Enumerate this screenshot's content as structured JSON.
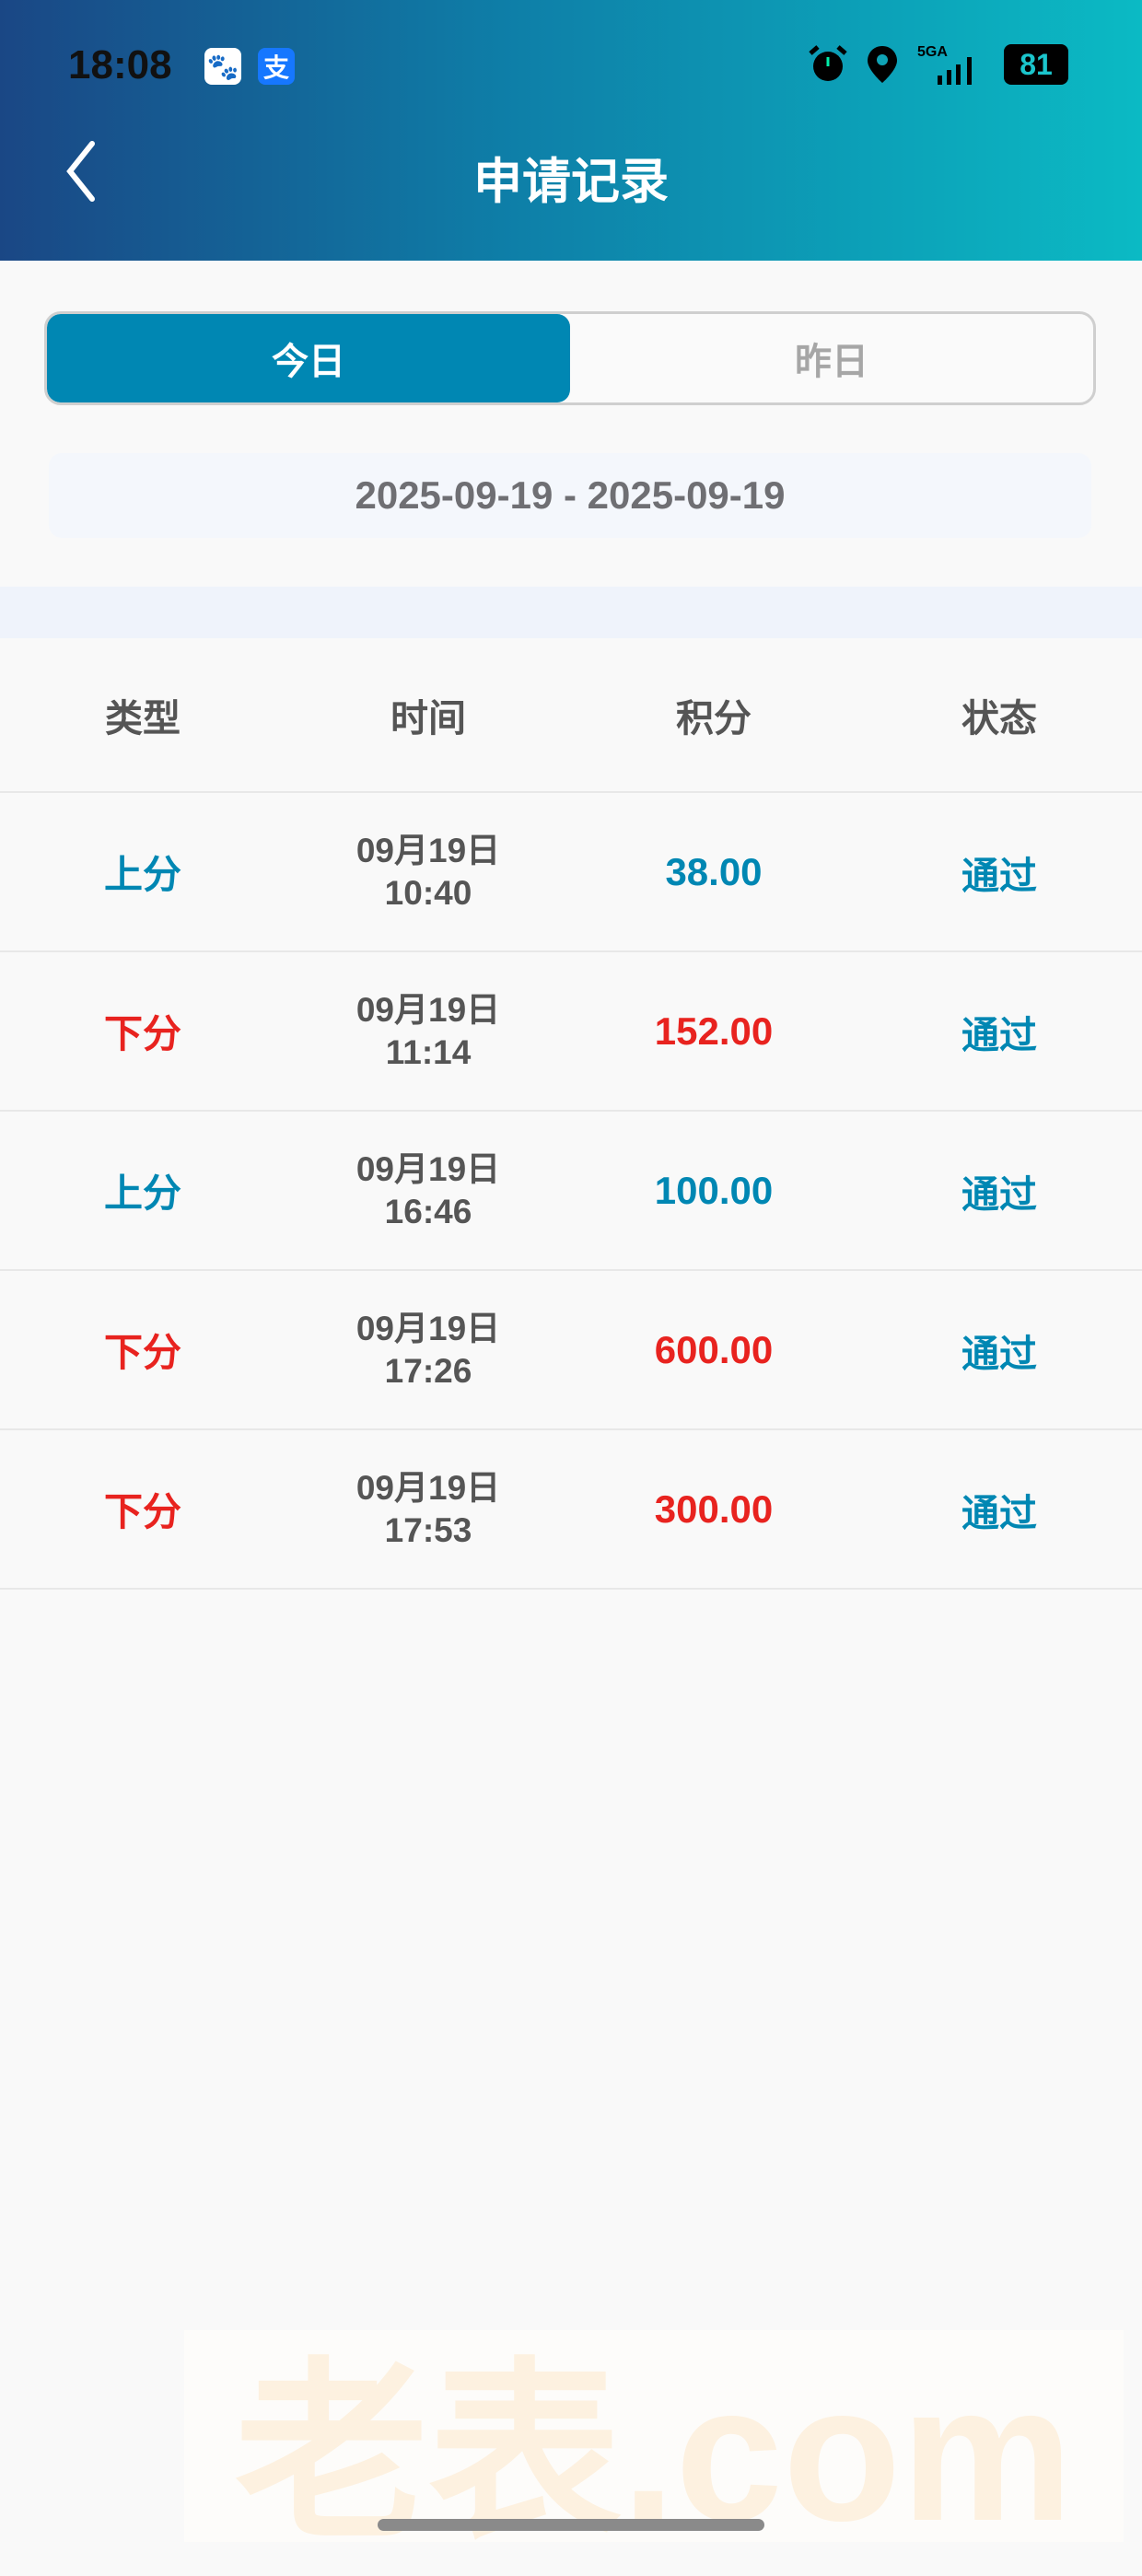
{
  "status_bar": {
    "time": "18:08",
    "battery": "81",
    "network": "5GA"
  },
  "header": {
    "title": "申请记录"
  },
  "tabs": [
    {
      "label": "今日",
      "active": true
    },
    {
      "label": "昨日",
      "active": false
    }
  ],
  "date_range": "2025-09-19 - 2025-09-19",
  "table": {
    "headers": [
      "类型",
      "时间",
      "积分",
      "状态"
    ],
    "rows": [
      {
        "type": "上分",
        "date": "09月19日",
        "time": "10:40",
        "points": "38.00",
        "status": "通过",
        "color": "blue"
      },
      {
        "type": "下分",
        "date": "09月19日",
        "time": "11:14",
        "points": "152.00",
        "status": "通过",
        "color": "red"
      },
      {
        "type": "上分",
        "date": "09月19日",
        "time": "16:46",
        "points": "100.00",
        "status": "通过",
        "color": "blue"
      },
      {
        "type": "下分",
        "date": "09月19日",
        "time": "17:26",
        "points": "600.00",
        "status": "通过",
        "color": "red"
      },
      {
        "type": "下分",
        "date": "09月19日",
        "time": "17:53",
        "points": "300.00",
        "status": "通过",
        "color": "red"
      }
    ]
  },
  "watermark": "老表.com",
  "colors": {
    "accent": "#0087b3",
    "red": "#e8231f"
  }
}
